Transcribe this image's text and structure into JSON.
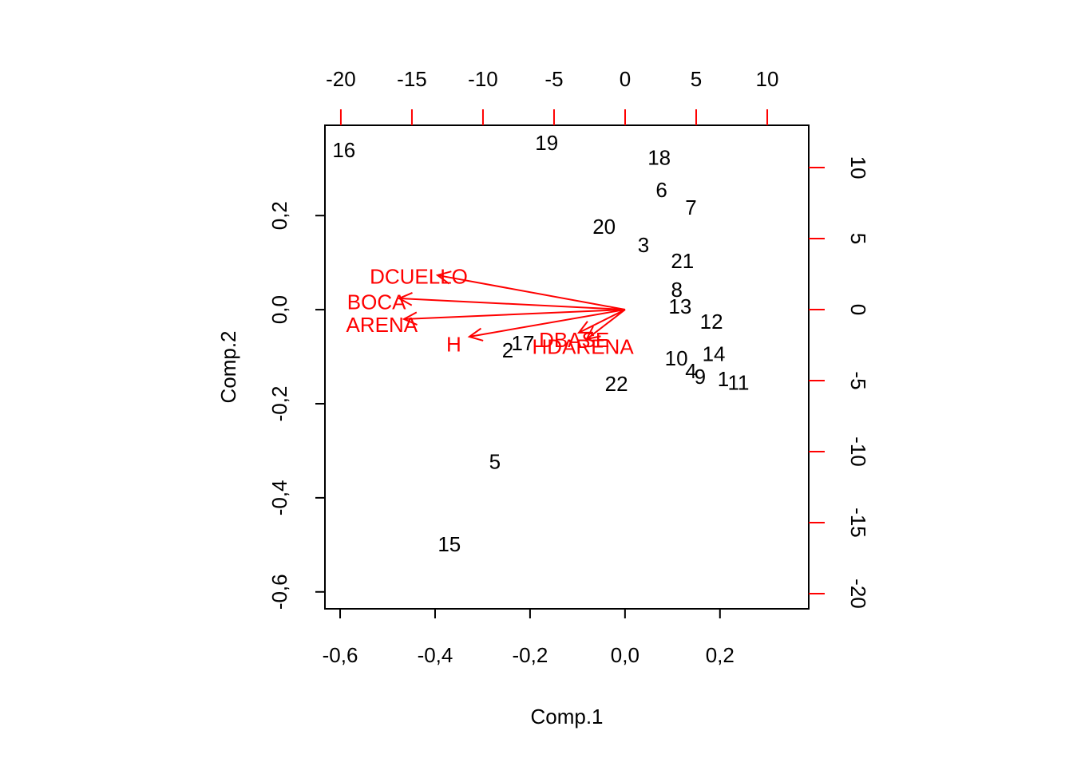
{
  "chart_data": {
    "type": "biplot",
    "x_label": "Comp.1",
    "y_label": "Comp.2",
    "xlim": [
      -0.632,
      0.387
    ],
    "ylim": [
      -0.636,
      0.392
    ],
    "xticks": [
      {
        "value": -0.6,
        "label": "-0,6"
      },
      {
        "value": -0.4,
        "label": "-0,4"
      },
      {
        "value": -0.2,
        "label": "-0,2"
      },
      {
        "value": 0,
        "label": "0,0"
      },
      {
        "value": 0.2,
        "label": "0,2"
      }
    ],
    "yticks": [
      {
        "value": -0.6,
        "label": "-0,6"
      },
      {
        "value": -0.4,
        "label": "-0,4"
      },
      {
        "value": -0.2,
        "label": "-0,2"
      },
      {
        "value": 0,
        "label": "0,0"
      },
      {
        "value": 0.2,
        "label": "0,2"
      }
    ],
    "x2lim": [
      -21.12,
      12.92
    ],
    "y2lim": [
      -21.07,
      12.98
    ],
    "x2ticks": [
      -20,
      -15,
      -10,
      -5,
      0,
      5,
      10
    ],
    "y2ticks": [
      -20,
      -15,
      -10,
      -5,
      0,
      5,
      10
    ],
    "point_color": "#000000",
    "arrow_color": "#ff0000",
    "points": [
      {
        "label": "16",
        "x": -0.592,
        "y": 0.336
      },
      {
        "label": "19",
        "x": -0.165,
        "y": 0.351
      },
      {
        "label": "18",
        "x": 0.072,
        "y": 0.32
      },
      {
        "label": "6",
        "x": 0.077,
        "y": 0.251
      },
      {
        "label": "7",
        "x": 0.139,
        "y": 0.214
      },
      {
        "label": "20",
        "x": -0.044,
        "y": 0.173
      },
      {
        "label": "3",
        "x": 0.039,
        "y": 0.134
      },
      {
        "label": "21",
        "x": 0.121,
        "y": 0.1
      },
      {
        "label": "8",
        "x": 0.109,
        "y": 0.039
      },
      {
        "label": "13",
        "x": 0.116,
        "y": 0.003
      },
      {
        "label": "12",
        "x": 0.182,
        "y": -0.029
      },
      {
        "label": "14",
        "x": 0.187,
        "y": -0.098
      },
      {
        "label": "10",
        "x": 0.108,
        "y": -0.107
      },
      {
        "label": "4",
        "x": 0.139,
        "y": -0.134
      },
      {
        "label": "9",
        "x": 0.158,
        "y": -0.146
      },
      {
        "label": "1",
        "x": 0.207,
        "y": -0.151
      },
      {
        "label": "11",
        "x": 0.239,
        "y": -0.159
      },
      {
        "label": "22",
        "x": -0.018,
        "y": -0.161
      },
      {
        "label": "2",
        "x": -0.247,
        "y": -0.09
      },
      {
        "label": "17",
        "x": -0.215,
        "y": -0.075
      },
      {
        "label": "5",
        "x": -0.274,
        "y": -0.327
      },
      {
        "label": "15",
        "x": -0.37,
        "y": -0.502
      }
    ],
    "arrows": [
      {
        "name": "DCUELLO",
        "x": -13.2,
        "y": 2.42
      },
      {
        "name": "BOCA",
        "x": -15.9,
        "y": 0.79
      },
      {
        "name": "ARENA",
        "x": -15.56,
        "y": -0.67
      },
      {
        "name": "H",
        "x": -10.96,
        "y": -1.91
      },
      {
        "name": "DBASE",
        "x": -3.26,
        "y": -1.63
      },
      {
        "name": "HDARENA",
        "x": -2.7,
        "y": -2.08
      }
    ]
  }
}
